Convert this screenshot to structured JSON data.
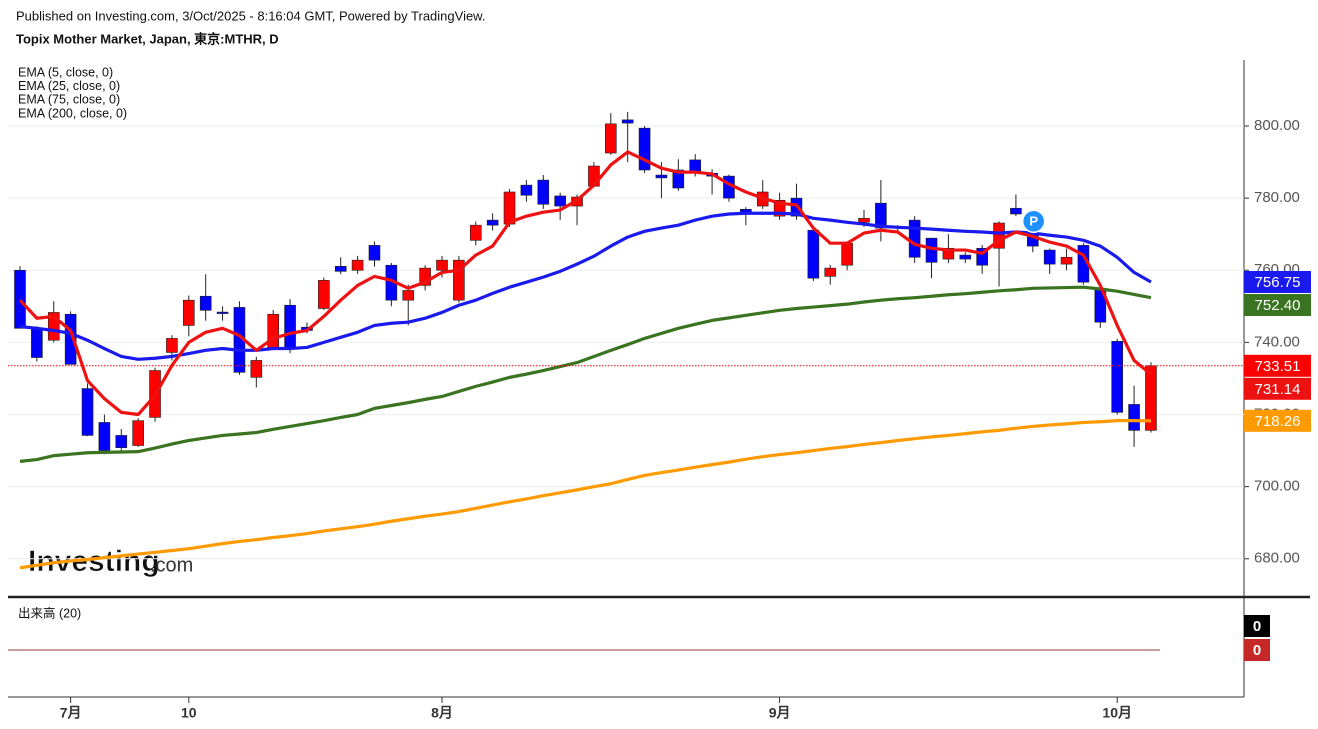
{
  "header": {
    "published": "Published on Investing.com, 3/Oct/2025 - 8:16:04 GMT, Powered by TradingView.",
    "instrument": "Topix Mother Market, Japan, 東京:MTHR, D"
  },
  "logo": {
    "main": "Investing",
    "suffix": ".com"
  },
  "chart_data": {
    "type": "candlestick",
    "categories": [
      null,
      null,
      null,
      "7月",
      null,
      null,
      null,
      null,
      null,
      null,
      "10",
      null,
      null,
      null,
      null,
      null,
      null,
      null,
      null,
      null,
      null,
      null,
      null,
      null,
      null,
      "8月",
      null,
      null,
      null,
      null,
      null,
      null,
      null,
      null,
      null,
      null,
      null,
      null,
      null,
      null,
      null,
      null,
      null,
      null,
      null,
      "9月",
      null,
      null,
      null,
      null,
      null,
      null,
      null,
      null,
      null,
      null,
      null,
      null,
      null,
      null,
      null,
      null,
      null,
      null,
      null,
      "10月",
      null,
      null
    ],
    "open": [
      760.0,
      743.9,
      740.6,
      747.8,
      727.2,
      717.8,
      714.2,
      711.4,
      719.2,
      737.2,
      744.7,
      752.8,
      748.4,
      749.7,
      730.3,
      738.3,
      750.3,
      744.2,
      749.4,
      761.1,
      760.0,
      766.9,
      761.4,
      751.7,
      755.8,
      760.0,
      751.7,
      768.3,
      773.9,
      772.8,
      783.6,
      785.0,
      780.6,
      777.8,
      783.3,
      792.5,
      801.7,
      799.4,
      786.4,
      787.8,
      790.6,
      786.9,
      786.1,
      776.9,
      777.8,
      775.0,
      780.0,
      771.1,
      758.3,
      761.4,
      773.3,
      778.6,
      771.7,
      773.9,
      768.9,
      763.1,
      764.2,
      766.1,
      766.1,
      777.2,
      773.9,
      765.6,
      761.7,
      766.9,
      755.0,
      740.3,
      722.8,
      715.6
    ],
    "high": [
      761.1,
      744.5,
      751.4,
      748.6,
      728.6,
      720.0,
      716.0,
      719.0,
      733.0,
      742.0,
      753.0,
      758.9,
      750.0,
      751.4,
      736.0,
      749.0,
      752.0,
      745.5,
      758.0,
      763.6,
      764.0,
      768.0,
      762.0,
      756.0,
      761.4,
      764.0,
      764.0,
      773.5,
      775.8,
      782.5,
      785.0,
      786.4,
      781.5,
      781.0,
      790.0,
      803.6,
      803.9,
      800.0,
      790.0,
      790.8,
      792.2,
      788.0,
      786.5,
      777.5,
      785.0,
      781.5,
      784.0,
      772.0,
      761.5,
      768.0,
      776.7,
      785.0,
      772.5,
      775.0,
      769.0,
      770.0,
      765.0,
      767.0,
      773.6,
      781.0,
      775.0,
      766.0,
      766.0,
      767.5,
      756.0,
      741.0,
      728.0,
      734.5
    ],
    "low": [
      743.9,
      734.7,
      740.0,
      733.9,
      714.0,
      709.0,
      710.0,
      711.0,
      718.0,
      735.0,
      741.7,
      746.0,
      746.0,
      731.0,
      727.5,
      738.0,
      737.0,
      742.5,
      749.0,
      758.9,
      759.0,
      761.0,
      750.0,
      744.7,
      754.4,
      758.0,
      751.0,
      766.9,
      771.0,
      772.0,
      779.0,
      777.0,
      774.0,
      772.5,
      783.0,
      792.0,
      790.0,
      787.0,
      780.0,
      782.0,
      786.0,
      781.0,
      779.0,
      772.5,
      777.0,
      774.0,
      774.0,
      757.0,
      756.0,
      760.0,
      772.0,
      768.0,
      771.0,
      762.0,
      757.8,
      762.0,
      762.0,
      759.0,
      755.5,
      775.0,
      765.0,
      759.0,
      760.0,
      756.0,
      744.0,
      720.0,
      711.0,
      715.0
    ],
    "close": [
      743.9,
      735.8,
      748.3,
      733.9,
      714.2,
      710.0,
      710.8,
      718.3,
      732.2,
      741.1,
      751.7,
      748.9,
      748.0,
      731.7,
      735.0,
      747.8,
      738.3,
      743.3,
      757.2,
      759.7,
      762.8,
      762.8,
      751.7,
      754.4,
      760.6,
      762.8,
      762.8,
      772.5,
      772.5,
      781.7,
      780.8,
      778.3,
      777.8,
      780.3,
      788.9,
      800.6,
      800.8,
      787.8,
      785.6,
      782.8,
      787.2,
      786.1,
      780.0,
      776.1,
      781.7,
      779.4,
      775.0,
      757.8,
      760.6,
      767.5,
      774.4,
      771.7,
      772.2,
      763.6,
      762.2,
      766.1,
      763.1,
      761.4,
      773.1,
      775.6,
      766.7,
      761.7,
      763.6,
      756.7,
      745.6,
      720.6,
      715.6,
      733.51
    ],
    "last_price_label": "733.51",
    "up_color": "#ff0000",
    "down_color": "#0000ff",
    "overlays": [
      {
        "name": "EMA (5, close, 0)",
        "color": "#ee1111",
        "last_label": "731.14",
        "values": [
          751.7,
          746.7,
          747.2,
          743.3,
          729.4,
          724.4,
          720.6,
          720.0,
          725.3,
          733.6,
          740.0,
          742.8,
          743.9,
          741.9,
          737.8,
          741.1,
          742.5,
          743.3,
          747.2,
          751.7,
          755.8,
          758.3,
          757.2,
          755.0,
          756.7,
          759.4,
          760.0,
          764.2,
          766.7,
          773.3,
          775.0,
          776.1,
          776.7,
          779.4,
          783.6,
          789.2,
          792.8,
          790.6,
          788.3,
          787.2,
          787.2,
          786.7,
          783.9,
          781.7,
          780.0,
          778.6,
          778.1,
          771.7,
          767.5,
          767.5,
          770.3,
          771.1,
          770.6,
          767.2,
          766.1,
          765.6,
          765.6,
          764.7,
          768.3,
          770.6,
          769.4,
          767.8,
          766.7,
          764.2,
          755.8,
          744.7,
          735.0,
          731.14
        ]
      },
      {
        "name": "EMA (25, close, 0)",
        "color": "#1a1aee",
        "last_label": "756.75",
        "values": [
          744.4,
          743.9,
          743.3,
          742.5,
          740.6,
          738.3,
          736.1,
          735.3,
          735.6,
          736.1,
          736.9,
          737.8,
          738.3,
          737.8,
          737.8,
          738.3,
          738.3,
          738.6,
          740.0,
          741.4,
          742.8,
          744.7,
          745.3,
          745.6,
          746.7,
          748.3,
          750.3,
          751.7,
          753.6,
          755.3,
          756.7,
          758.1,
          759.7,
          761.7,
          763.9,
          766.7,
          769.2,
          770.8,
          771.7,
          772.5,
          773.9,
          775.0,
          775.6,
          775.8,
          775.8,
          775.8,
          775.6,
          774.4,
          773.9,
          773.3,
          772.8,
          772.2,
          771.9,
          771.7,
          771.4,
          771.1,
          770.8,
          770.6,
          770.3,
          770.6,
          770.3,
          769.7,
          769.2,
          768.3,
          766.7,
          763.6,
          759.4,
          756.75
        ]
      },
      {
        "name": "EMA (75, close, 0)",
        "color": "#3a7420",
        "last_label": "752.40",
        "values": [
          707.0,
          707.5,
          708.6,
          709.0,
          709.4,
          709.5,
          709.6,
          709.7,
          710.7,
          711.8,
          712.8,
          713.5,
          714.2,
          714.6,
          715.0,
          715.9,
          716.7,
          717.5,
          718.3,
          719.2,
          720.0,
          721.7,
          722.5,
          723.3,
          724.2,
          725.0,
          726.4,
          727.8,
          729.0,
          730.3,
          731.2,
          732.2,
          733.3,
          734.4,
          736.1,
          737.8,
          739.4,
          741.1,
          742.5,
          743.9,
          745.0,
          746.1,
          746.8,
          747.5,
          748.2,
          748.9,
          749.4,
          749.8,
          750.2,
          750.6,
          751.2,
          751.7,
          752.1,
          752.4,
          752.8,
          753.2,
          753.5,
          753.9,
          754.3,
          754.6,
          755.0,
          755.1,
          755.2,
          755.3,
          754.8,
          754.2,
          753.3,
          752.4
        ]
      },
      {
        "name": "EMA (200, close, 0)",
        "color": "#ff9a00",
        "last_label": "718.26",
        "values": [
          677.5,
          678.2,
          678.9,
          679.4,
          679.8,
          680.3,
          680.8,
          681.3,
          681.8,
          682.3,
          682.8,
          683.5,
          684.2,
          684.8,
          685.3,
          685.9,
          686.4,
          687.0,
          687.7,
          688.3,
          688.9,
          689.6,
          690.4,
          691.1,
          691.8,
          692.4,
          693.1,
          694.0,
          694.9,
          695.8,
          696.6,
          697.5,
          698.3,
          699.1,
          700.0,
          700.8,
          702.0,
          703.1,
          703.9,
          704.6,
          705.4,
          706.1,
          706.8,
          707.6,
          708.3,
          708.9,
          709.4,
          710.0,
          710.6,
          711.1,
          711.7,
          712.2,
          712.8,
          713.3,
          713.8,
          714.2,
          714.7,
          715.2,
          715.6,
          716.2,
          716.7,
          717.1,
          717.4,
          717.8,
          718.0,
          718.3,
          718.3,
          718.26
        ]
      }
    ],
    "marker": "P",
    "ylim": [
      669.4,
      818.3
    ],
    "yticks": [
      {
        "value": 680,
        "label": "680.00"
      },
      {
        "value": 700,
        "label": "700.00"
      },
      {
        "value": 720,
        "label": "720.00"
      },
      {
        "value": 740,
        "label": "740.00"
      },
      {
        "value": 760,
        "label": "760.00"
      },
      {
        "value": 780,
        "label": "780.00"
      },
      {
        "value": 800,
        "label": "800.00"
      }
    ],
    "grid": true,
    "volume": {
      "title": "出来高 (20)",
      "last": 0,
      "average_last": 0
    }
  }
}
